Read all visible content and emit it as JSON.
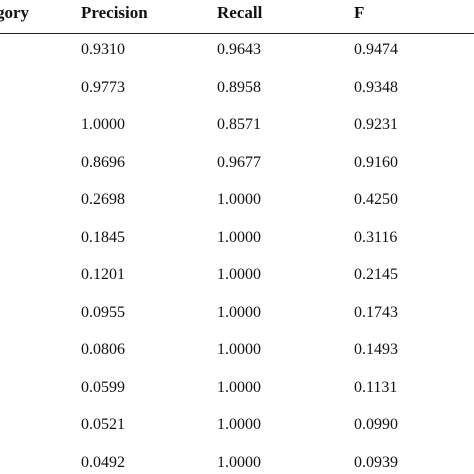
{
  "table": {
    "headers": {
      "category": "gory",
      "precision": "Precision",
      "recall": "Recall",
      "f": "F"
    },
    "rows": [
      {
        "category": "",
        "precision": "0.9310",
        "recall": "0.9643",
        "f": "0.9474"
      },
      {
        "category": "",
        "precision": "0.9773",
        "recall": "0.8958",
        "f": "0.9348"
      },
      {
        "category": "",
        "precision": "1.0000",
        "recall": "0.8571",
        "f": "0.9231"
      },
      {
        "category": "",
        "precision": "0.8696",
        "recall": "0.9677",
        "f": "0.9160"
      },
      {
        "category": "",
        "precision": "0.2698",
        "recall": "1.0000",
        "f": "0.4250"
      },
      {
        "category": "",
        "precision": "0.1845",
        "recall": "1.0000",
        "f": "0.3116"
      },
      {
        "category": "",
        "precision": "0.1201",
        "recall": "1.0000",
        "f": "0.2145"
      },
      {
        "category": "",
        "precision": "0.0955",
        "recall": "1.0000",
        "f": "0.1743"
      },
      {
        "category": "",
        "precision": "0.0806",
        "recall": "1.0000",
        "f": "0.1493"
      },
      {
        "category": "",
        "precision": "0.0599",
        "recall": "1.0000",
        "f": "0.1131"
      },
      {
        "category": "",
        "precision": "0.0521",
        "recall": "1.0000",
        "f": "0.0990"
      },
      {
        "category": "",
        "precision": "0.0492",
        "recall": "1.0000",
        "f": "0.0939"
      }
    ]
  }
}
